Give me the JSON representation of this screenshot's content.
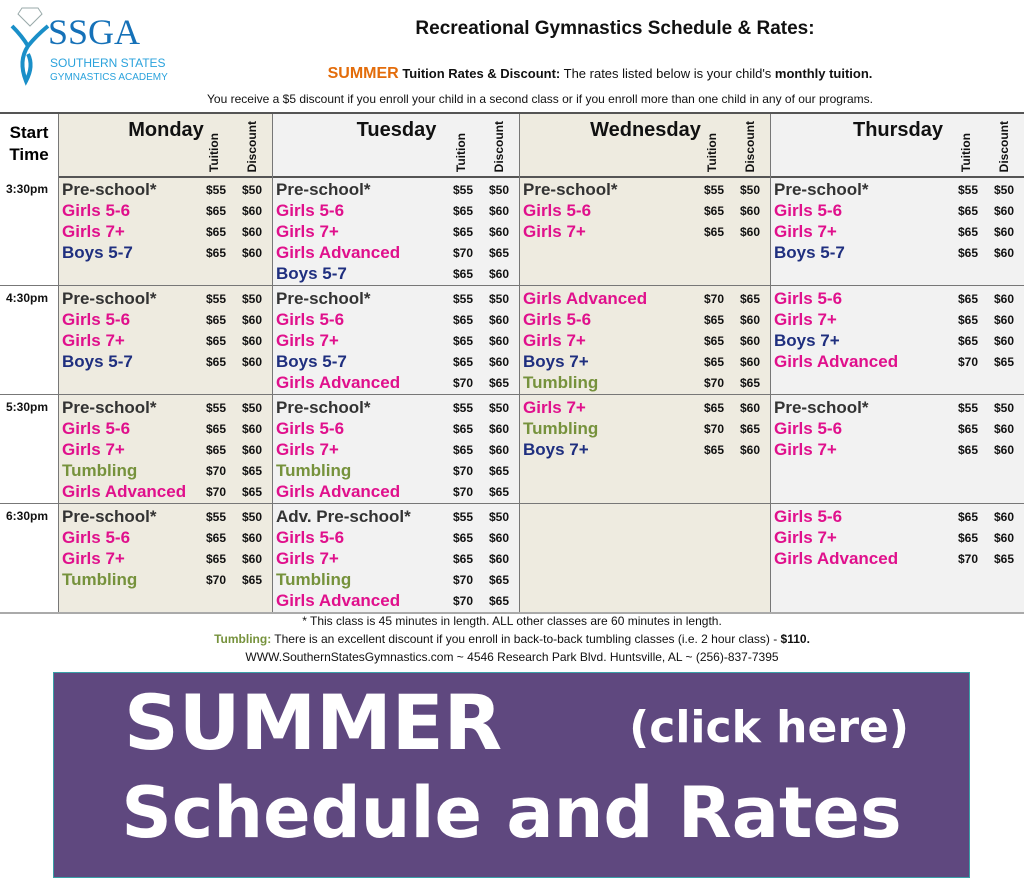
{
  "logo": {
    "text": "SSGA",
    "line1": "SOUTHERN STATES",
    "line2": "GYMNASTICS ACADEMY"
  },
  "header": {
    "title": "Recreational Gymnastics Schedule & Rates:",
    "season": "SUMMER",
    "tuition_label": " Tuition Rates & Discount:",
    "tuition_text": "  The rates listed below is your child's ",
    "tuition_bold": "monthly tuition.",
    "discount_text": "You receive a $5 discount if you enroll your child in a second class or if you enroll more than one child in any of our programs."
  },
  "table": {
    "start_time_label": "Start Time",
    "tuition_label": "Tuition",
    "discount_label": "Discount",
    "days": [
      "Monday",
      "Tuesday",
      "Wednesday",
      "Thursday"
    ],
    "times": [
      "3:30pm",
      "4:30pm",
      "5:30pm",
      "6:30pm"
    ],
    "schedule": [
      [
        [
          [
            "Pre-school*",
            "$55",
            "$50",
            "pre"
          ],
          [
            "Girls 5-6",
            "$65",
            "$60",
            "girls"
          ],
          [
            "Girls 7+",
            "$65",
            "$60",
            "girls"
          ],
          [
            "Boys 5-7",
            "$65",
            "$60",
            "boys"
          ]
        ],
        [
          [
            "Pre-school*",
            "$55",
            "$50",
            "pre"
          ],
          [
            "Girls 5-6",
            "$65",
            "$60",
            "girls"
          ],
          [
            "Girls 7+",
            "$65",
            "$60",
            "girls"
          ],
          [
            "Girls Advanced",
            "$70",
            "$65",
            "girls"
          ],
          [
            "Boys 5-7",
            "$65",
            "$60",
            "boys"
          ]
        ],
        [
          [
            "Pre-school*",
            "$55",
            "$50",
            "pre"
          ],
          [
            "Girls 5-6",
            "$65",
            "$60",
            "girls"
          ],
          [
            "Girls 7+",
            "$65",
            "$60",
            "girls"
          ]
        ],
        [
          [
            "Pre-school*",
            "$55",
            "$50",
            "pre"
          ],
          [
            "Girls 5-6",
            "$65",
            "$60",
            "girls"
          ],
          [
            "Girls 7+",
            "$65",
            "$60",
            "girls"
          ],
          [
            "Boys 5-7",
            "$65",
            "$60",
            "boys"
          ]
        ]
      ],
      [
        [
          [
            "Pre-school*",
            "$55",
            "$50",
            "pre"
          ],
          [
            "Girls 5-6",
            "$65",
            "$60",
            "girls"
          ],
          [
            "Girls 7+",
            "$65",
            "$60",
            "girls"
          ],
          [
            "Boys 5-7",
            "$65",
            "$60",
            "boys"
          ]
        ],
        [
          [
            "Pre-school*",
            "$55",
            "$50",
            "pre"
          ],
          [
            "Girls 5-6",
            "$65",
            "$60",
            "girls"
          ],
          [
            "Girls 7+",
            "$65",
            "$60",
            "girls"
          ],
          [
            "Boys 5-7",
            "$65",
            "$60",
            "boys"
          ],
          [
            "Girls Advanced",
            "$70",
            "$65",
            "girls"
          ]
        ],
        [
          [
            "Girls Advanced",
            "$70",
            "$65",
            "girls"
          ],
          [
            "Girls 5-6",
            "$65",
            "$60",
            "girls"
          ],
          [
            "Girls 7+",
            "$65",
            "$60",
            "girls"
          ],
          [
            "Boys 7+",
            "$65",
            "$60",
            "boys"
          ],
          [
            "Tumbling",
            "$70",
            "$65",
            "tumb"
          ]
        ],
        [
          [
            "Girls 5-6",
            "$65",
            "$60",
            "girls"
          ],
          [
            "Girls 7+",
            "$65",
            "$60",
            "girls"
          ],
          [
            "Boys 7+",
            "$65",
            "$60",
            "boys"
          ],
          [
            "Girls Advanced",
            "$70",
            "$65",
            "girls"
          ]
        ]
      ],
      [
        [
          [
            "Pre-school*",
            "$55",
            "$50",
            "pre"
          ],
          [
            "Girls 5-6",
            "$65",
            "$60",
            "girls"
          ],
          [
            "Girls 7+",
            "$65",
            "$60",
            "girls"
          ],
          [
            "Tumbling",
            "$70",
            "$65",
            "tumb"
          ],
          [
            "Girls Advanced",
            "$70",
            "$65",
            "girls"
          ]
        ],
        [
          [
            "Pre-school*",
            "$55",
            "$50",
            "pre"
          ],
          [
            "Girls 5-6",
            "$65",
            "$60",
            "girls"
          ],
          [
            "Girls 7+",
            "$65",
            "$60",
            "girls"
          ],
          [
            "Tumbling",
            "$70",
            "$65",
            "tumb"
          ],
          [
            "Girls Advanced",
            "$70",
            "$65",
            "girls"
          ]
        ],
        [
          [
            "Girls 7+",
            "$65",
            "$60",
            "girls"
          ],
          [
            "Tumbling",
            "$70",
            "$65",
            "tumb"
          ],
          [
            "Boys 7+",
            "$65",
            "$60",
            "boys"
          ]
        ],
        [
          [
            "Pre-school*",
            "$55",
            "$50",
            "pre"
          ],
          [
            "Girls 5-6",
            "$65",
            "$60",
            "girls"
          ],
          [
            "Girls 7+",
            "$65",
            "$60",
            "girls"
          ]
        ]
      ],
      [
        [
          [
            "Pre-school*",
            "$55",
            "$50",
            "pre"
          ],
          [
            "Girls 5-6",
            "$65",
            "$60",
            "girls"
          ],
          [
            "Girls 7+",
            "$65",
            "$60",
            "girls"
          ],
          [
            "Tumbling",
            "$70",
            "$65",
            "tumb"
          ]
        ],
        [
          [
            "Adv. Pre-school*",
            "$55",
            "$50",
            "pre"
          ],
          [
            "Girls 5-6",
            "$65",
            "$60",
            "girls"
          ],
          [
            "Girls 7+",
            "$65",
            "$60",
            "girls"
          ],
          [
            "Tumbling",
            "$70",
            "$65",
            "tumb"
          ],
          [
            "Girls Advanced",
            "$70",
            "$65",
            "girls"
          ]
        ],
        [],
        [
          [
            "Girls 5-6",
            "$65",
            "$60",
            "girls"
          ],
          [
            "Girls 7+",
            "$65",
            "$60",
            "girls"
          ],
          [
            "Girls Advanced",
            "$70",
            "$65",
            "girls"
          ]
        ]
      ]
    ]
  },
  "colors": {
    "pre": "#333333",
    "girls": "#e0108c",
    "boys": "#1f2f7f",
    "tumb": "#76923c",
    "col_a": "#eeebe0",
    "col_b": "#f2f2f2",
    "overlay": "#563e78"
  },
  "footer": {
    "note": "*  This class is 45 minutes in length.  ALL other classes are 60 minutes in length.",
    "tumbling_label": "Tumbling:",
    "tumbling_text": "  There is an excellent discount if you enroll in back-to-back tumbling classes (i.e. 2 hour class) - ",
    "tumbling_price": "$110.",
    "contact": "WWW.SouthernStatesGymnastics.com  ~  4546 Research Park Blvd.  Huntsville, AL  ~  (256)-837-7395"
  },
  "overlay": {
    "line1": "SUMMER",
    "line2": "Schedule and Rates",
    "line3": "(click here)"
  }
}
